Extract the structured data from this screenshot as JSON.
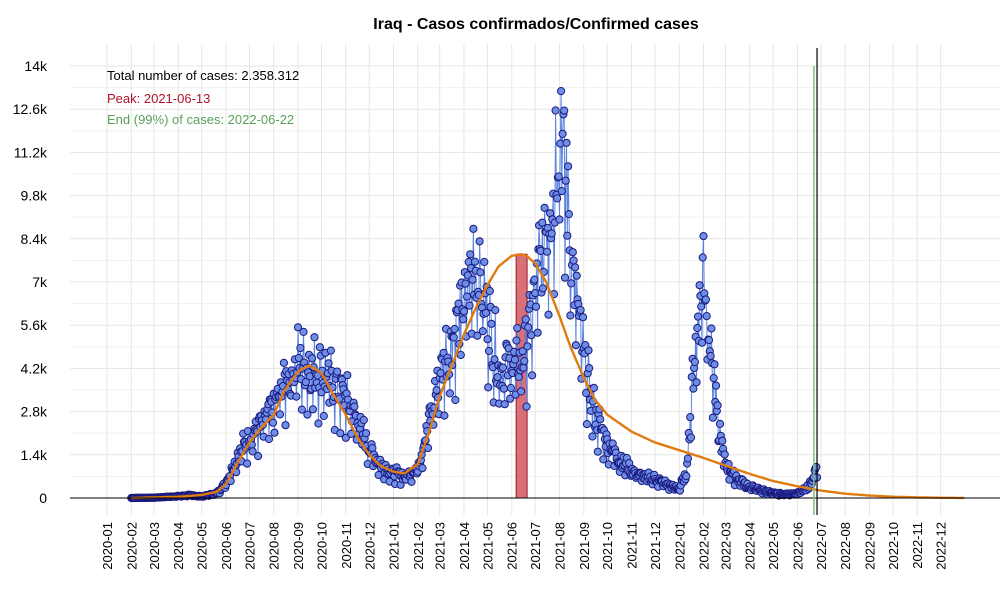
{
  "chart_data": {
    "type": "line",
    "title": "Iraq - Casos confirmados/Confirmed cases",
    "xlabel": "",
    "ylabel": "",
    "ylim": [
      0,
      14000
    ],
    "xlim": [
      "2020-01",
      "2023-01"
    ],
    "y_ticks": [
      0,
      1400,
      2800,
      4200,
      5600,
      7000,
      8400,
      9800,
      11200,
      12600,
      14000
    ],
    "y_tick_labels": [
      "0",
      "1.4k",
      "2.8k",
      "4.2k",
      "5.6k",
      "7k",
      "8.4k",
      "9.8k",
      "11.2k",
      "12.6k",
      "14k"
    ],
    "x_tick_labels": [
      "2020-01",
      "2020-02",
      "2020-03",
      "2020-04",
      "2020-05",
      "2020-06",
      "2020-07",
      "2020-08",
      "2020-09",
      "2020-10",
      "2020-11",
      "2020-12",
      "2021-01",
      "2021-02",
      "2021-03",
      "2021-04",
      "2021-05",
      "2021-06",
      "2021-07",
      "2021-08",
      "2021-09",
      "2021-10",
      "2021-11",
      "2021-12",
      "2022-01",
      "2022-02",
      "2022-03",
      "2022-04",
      "2022-05",
      "2022-06",
      "2022-07",
      "2022-08",
      "2022-09",
      "2022-10",
      "2022-11",
      "2022-12"
    ],
    "grid": true,
    "annotations": {
      "total": "Total number of cases: 2.358.312",
      "peak": "Peak: 2021-06-13",
      "end": "End (99%) of cases: 2022-06-22"
    },
    "peak_date": "2021-06-13",
    "end_date": "2022-06-22",
    "vline_date": "2022-06-26",
    "colors": {
      "points_fill": "#6f8fe6",
      "points_stroke": "#1a1a80",
      "daily_line": "#5b84e0",
      "fit": "#e07b10",
      "peak_band": "#d0575f",
      "peak_text": "#b0122a",
      "end_text": "#5aa05a",
      "end_line": "#7cc27c",
      "vline": "#000000",
      "grid": "#e6e6e6"
    },
    "series": [
      {
        "kind": "daily_cases",
        "keypoints": [
          [
            "2020-02-01",
            0
          ],
          [
            "2020-03-01",
            10
          ],
          [
            "2020-04-01",
            60
          ],
          [
            "2020-04-15",
            90
          ],
          [
            "2020-05-01",
            50
          ],
          [
            "2020-05-20",
            150
          ],
          [
            "2020-06-01",
            500
          ],
          [
            "2020-06-15",
            1300
          ],
          [
            "2020-07-01",
            2000
          ],
          [
            "2020-07-15",
            2300
          ],
          [
            "2020-08-01",
            2900
          ],
          [
            "2020-08-15",
            3800
          ],
          [
            "2020-09-01",
            4400
          ],
          [
            "2020-09-15",
            4200
          ],
          [
            "2020-10-01",
            4100
          ],
          [
            "2020-10-15",
            3700
          ],
          [
            "2020-11-01",
            3200
          ],
          [
            "2020-11-15",
            2600
          ],
          [
            "2020-12-01",
            1600
          ],
          [
            "2020-12-15",
            1100
          ],
          [
            "2021-01-01",
            800
          ],
          [
            "2021-01-15",
            700
          ],
          [
            "2021-02-01",
            1000
          ],
          [
            "2021-02-15",
            2400
          ],
          [
            "2021-03-01",
            4000
          ],
          [
            "2021-03-15",
            5000
          ],
          [
            "2021-04-01",
            6300
          ],
          [
            "2021-04-15",
            7800
          ],
          [
            "2021-05-01",
            6000
          ],
          [
            "2021-05-15",
            4200
          ],
          [
            "2021-06-01",
            4300
          ],
          [
            "2021-06-15",
            4500
          ],
          [
            "2021-07-01",
            6500
          ],
          [
            "2021-07-15",
            9000
          ],
          [
            "2021-07-25",
            10000
          ],
          [
            "2021-08-01",
            12500
          ],
          [
            "2021-08-10",
            10000
          ],
          [
            "2021-08-20",
            7000
          ],
          [
            "2021-09-01",
            4500
          ],
          [
            "2021-09-15",
            2700
          ],
          [
            "2021-10-01",
            1800
          ],
          [
            "2021-10-15",
            1300
          ],
          [
            "2021-11-01",
            900
          ],
          [
            "2021-11-15",
            700
          ],
          [
            "2021-12-01",
            600
          ],
          [
            "2021-12-20",
            400
          ],
          [
            "2022-01-01",
            300
          ],
          [
            "2022-01-10",
            800
          ],
          [
            "2022-01-20",
            4500
          ],
          [
            "2022-02-01",
            7600
          ],
          [
            "2022-02-10",
            5000
          ],
          [
            "2022-02-20",
            2300
          ],
          [
            "2022-03-01",
            1100
          ],
          [
            "2022-03-15",
            650
          ],
          [
            "2022-04-01",
            350
          ],
          [
            "2022-04-15",
            250
          ],
          [
            "2022-05-01",
            150
          ],
          [
            "2022-05-15",
            120
          ],
          [
            "2022-06-01",
            150
          ],
          [
            "2022-06-15",
            350
          ],
          [
            "2022-06-26",
            1000
          ]
        ]
      },
      {
        "kind": "model_fit",
        "keypoints": [
          [
            "2020-02-01",
            0
          ],
          [
            "2020-04-01",
            40
          ],
          [
            "2020-05-01",
            100
          ],
          [
            "2020-05-20",
            200
          ],
          [
            "2020-06-01",
            450
          ],
          [
            "2020-06-15",
            1100
          ],
          [
            "2020-07-01",
            1800
          ],
          [
            "2020-07-15",
            2250
          ],
          [
            "2020-08-01",
            2700
          ],
          [
            "2020-08-15",
            3500
          ],
          [
            "2020-09-01",
            4100
          ],
          [
            "2020-09-15",
            4300
          ],
          [
            "2020-10-01",
            4050
          ],
          [
            "2020-10-15",
            3400
          ],
          [
            "2020-11-01",
            2700
          ],
          [
            "2020-11-15",
            2000
          ],
          [
            "2020-12-01",
            1400
          ],
          [
            "2020-12-15",
            1050
          ],
          [
            "2021-01-01",
            850
          ],
          [
            "2021-01-15",
            800
          ],
          [
            "2021-02-01",
            1100
          ],
          [
            "2021-02-15",
            2100
          ],
          [
            "2021-03-01",
            3300
          ],
          [
            "2021-03-15",
            4200
          ],
          [
            "2021-04-01",
            5300
          ],
          [
            "2021-04-15",
            6100
          ],
          [
            "2021-05-01",
            6900
          ],
          [
            "2021-05-15",
            7500
          ],
          [
            "2021-06-01",
            7850
          ],
          [
            "2021-06-13",
            7900
          ],
          [
            "2021-06-20",
            7850
          ],
          [
            "2021-07-01",
            7600
          ],
          [
            "2021-07-15",
            7000
          ],
          [
            "2021-08-01",
            5900
          ],
          [
            "2021-08-15",
            4900
          ],
          [
            "2021-09-01",
            3900
          ],
          [
            "2021-09-15",
            3200
          ],
          [
            "2021-10-01",
            2700
          ],
          [
            "2021-11-01",
            2150
          ],
          [
            "2021-12-01",
            1800
          ],
          [
            "2022-01-01",
            1550
          ],
          [
            "2022-02-01",
            1300
          ],
          [
            "2022-03-01",
            1050
          ],
          [
            "2022-04-01",
            780
          ],
          [
            "2022-05-01",
            550
          ],
          [
            "2022-06-01",
            380
          ],
          [
            "2022-07-01",
            240
          ],
          [
            "2022-08-01",
            140
          ],
          [
            "2022-09-01",
            80
          ],
          [
            "2022-10-01",
            40
          ],
          [
            "2022-11-01",
            20
          ],
          [
            "2022-12-01",
            8
          ],
          [
            "2022-12-31",
            3
          ]
        ]
      }
    ]
  }
}
